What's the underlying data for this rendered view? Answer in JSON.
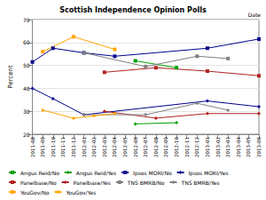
{
  "chart_data": {
    "type": "line",
    "title": "Scottish Independence Opinion Polls",
    "x_label": "Date",
    "y_label": "Percent",
    "categories": [
      "2011-08",
      "2011-09",
      "2011-10",
      "2011-11",
      "2011-12",
      "2012-01",
      "2012-02",
      "2012-03",
      "2012-04",
      "2012-05",
      "2012-06",
      "2012-07",
      "2012-08",
      "2012-09",
      "2012-10",
      "2012-11",
      "2012-12",
      "2013-01",
      "2013-02",
      "2013-03",
      "2013-04",
      "2013-05",
      "2013-06"
    ],
    "ylim": [
      20,
      70
    ],
    "yticks": [
      20,
      30,
      40,
      50,
      60,
      70
    ],
    "grid": true,
    "legend": "bottom",
    "series": [
      {
        "name": "Angus Reid/No",
        "color": "#00a000",
        "marker": "square",
        "line_style": "solid",
        "values": [
          null,
          null,
          null,
          null,
          null,
          null,
          null,
          null,
          null,
          null,
          52,
          null,
          null,
          null,
          49,
          null,
          null,
          null,
          null,
          null,
          null,
          null,
          null
        ]
      },
      {
        "name": "Angus Reid/Yes",
        "color": "#00a000",
        "marker": "diamond",
        "line_style": "solid",
        "values": [
          null,
          null,
          null,
          null,
          null,
          null,
          null,
          null,
          null,
          null,
          24.5,
          null,
          null,
          null,
          25,
          null,
          null,
          null,
          null,
          null,
          null,
          null,
          null
        ]
      },
      {
        "name": "Ipsos MORI/No",
        "color": "#00008b",
        "marker": "square",
        "line_style": "solid",
        "values": [
          51.5,
          null,
          57.5,
          null,
          null,
          55.5,
          null,
          null,
          54,
          null,
          null,
          null,
          null,
          null,
          null,
          null,
          null,
          57.5,
          null,
          null,
          null,
          null,
          61.5
        ]
      },
      {
        "name": "Ipsos MORI/Yes",
        "color": "#00008b",
        "marker": "diamond",
        "line_style": "solid",
        "values": [
          40,
          null,
          35.5,
          null,
          null,
          28.5,
          null,
          null,
          null,
          null,
          null,
          null,
          null,
          null,
          null,
          null,
          null,
          34.5,
          null,
          null,
          null,
          null,
          32
        ]
      },
      {
        "name": "Panelbase/No",
        "color": "#b22222",
        "marker": "square",
        "line_style": "solid",
        "values": [
          null,
          null,
          null,
          null,
          null,
          null,
          null,
          47,
          null,
          null,
          null,
          null,
          49,
          null,
          null,
          null,
          null,
          47.5,
          null,
          null,
          null,
          null,
          45.5
        ]
      },
      {
        "name": "Panelbase/Yes",
        "color": "#b22222",
        "marker": "diamond",
        "line_style": "solid",
        "values": [
          null,
          null,
          null,
          null,
          null,
          null,
          null,
          30,
          null,
          null,
          null,
          null,
          27,
          null,
          null,
          null,
          null,
          29,
          null,
          null,
          null,
          null,
          29
        ]
      },
      {
        "name": "TNS BMRB/No",
        "color": "#808080",
        "marker": "square",
        "line_style": "solid",
        "values": [
          null,
          null,
          null,
          null,
          null,
          55.5,
          null,
          null,
          null,
          null,
          null,
          49.5,
          null,
          null,
          null,
          null,
          54,
          null,
          null,
          53,
          null,
          null,
          null
        ]
      },
      {
        "name": "TNS BMRB/Yes",
        "color": "#808080",
        "marker": "diamond",
        "line_style": "solid",
        "values": [
          null,
          null,
          null,
          null,
          null,
          28.5,
          null,
          null,
          null,
          null,
          null,
          28.5,
          null,
          null,
          null,
          null,
          33.5,
          null,
          null,
          30.5,
          null,
          null,
          null
        ]
      },
      {
        "name": "YouGov/No",
        "color": "#ffa500",
        "marker": "square",
        "line_style": "solid",
        "values": [
          null,
          56,
          null,
          null,
          62.5,
          null,
          null,
          null,
          57,
          null,
          null,
          null,
          null,
          null,
          null,
          null,
          null,
          null,
          null,
          null,
          null,
          null,
          null
        ]
      },
      {
        "name": "YouGov/Yes",
        "color": "#ffa500",
        "marker": "diamond",
        "line_style": "solid",
        "values": [
          null,
          30.5,
          null,
          null,
          27,
          null,
          28,
          null,
          29,
          null,
          null,
          null,
          null,
          null,
          null,
          null,
          null,
          null,
          null,
          null,
          null,
          null,
          null
        ]
      }
    ]
  }
}
